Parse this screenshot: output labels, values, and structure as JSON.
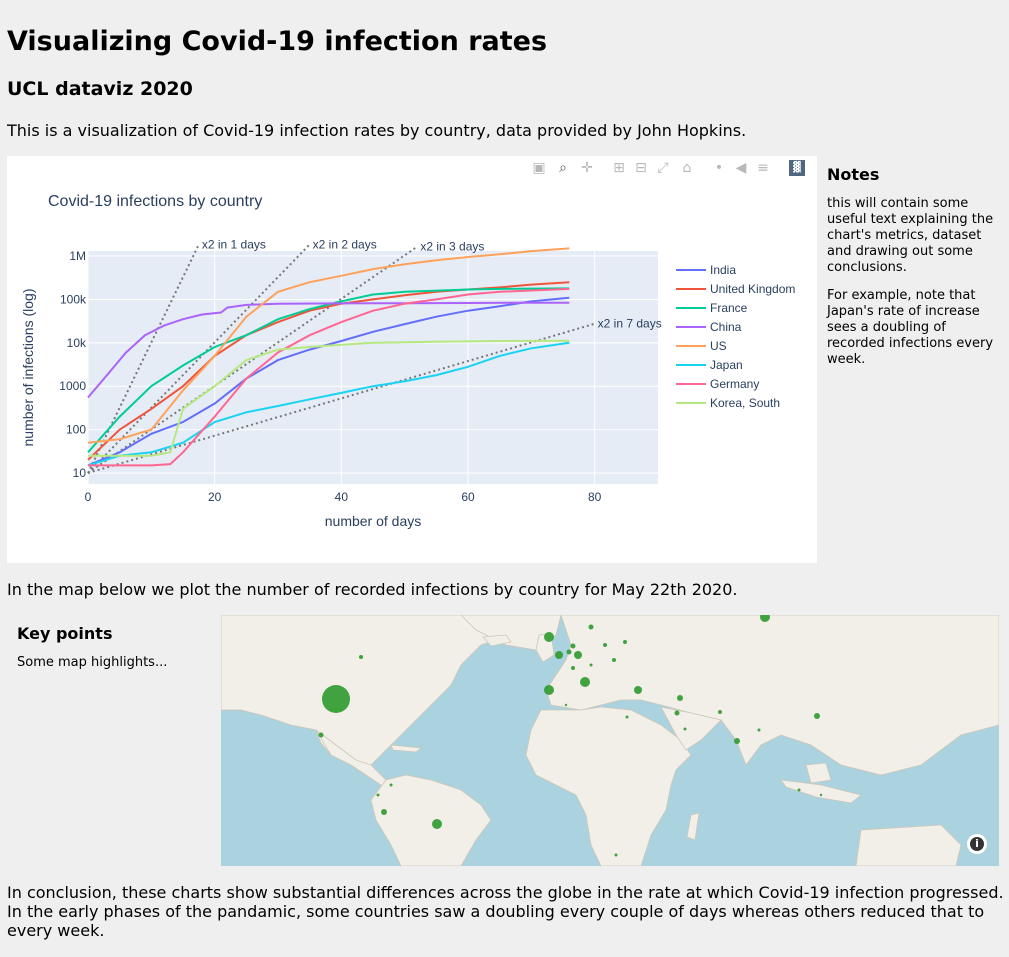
{
  "page": {
    "title": "Visualizing Covid-19 infection rates",
    "subtitle": "UCL dataviz 2020",
    "intro": "This is a visualization of Covid-19 infection rates by country, data provided by John Hopkins.",
    "map_intro": "In the map below we plot the number of recorded infections by country for May 22th 2020.",
    "conclusion": "In conclusion, these charts show substantial differences across the globe in the rate at which Covid-19 infection progressed. In the early phases of the pandamic, some countries saw a doubling every couple of days whereas others reduced that to every week."
  },
  "notes": {
    "heading": "Notes",
    "p1": "this will contain some useful text explaining the chart's metrics, dataset and drawing out some conclusions.",
    "p2": "For example, note that Japan's rate of increase sees a doubling of recorded infections every week."
  },
  "keypoints": {
    "heading": "Key points",
    "text": "Some map highlights..."
  },
  "modebar": {
    "icons": [
      "camera-icon",
      "zoom-icon",
      "pan-icon",
      "zoom-in-icon",
      "zoom-out-icon",
      "autoscale-icon",
      "reset-axes-icon",
      "spike-lines-icon",
      "hover-closest-icon",
      "hover-compare-icon",
      "plotly-logo-icon"
    ]
  },
  "chart_data": {
    "type": "line",
    "title": "Covid-19 infections by country",
    "xlabel": "number of days",
    "ylabel": "number of infections (log)",
    "xlim": [
      0,
      90
    ],
    "ylim": [
      10,
      2000000
    ],
    "y_scale": "log",
    "x_ticks": [
      0,
      20,
      40,
      60,
      80
    ],
    "y_ticks": [
      {
        "v": 10,
        "label": "10"
      },
      {
        "v": 100,
        "label": "100"
      },
      {
        "v": 1000,
        "label": "1000"
      },
      {
        "v": 10000,
        "label": "10k"
      },
      {
        "v": 100000,
        "label": "100k"
      },
      {
        "v": 1000000,
        "label": "1M"
      }
    ],
    "grid": true,
    "legend": "right",
    "series": [
      {
        "name": "India",
        "color": "#636efa",
        "x": [
          0,
          5,
          10,
          15,
          20,
          25,
          30,
          35,
          40,
          45,
          50,
          55,
          60,
          65,
          70,
          76
        ],
        "y": [
          15,
          30,
          80,
          150,
          400,
          1500,
          4000,
          7000,
          11000,
          18000,
          27000,
          40000,
          55000,
          70000,
          90000,
          110000
        ]
      },
      {
        "name": "United Kingdom",
        "color": "#ef553b",
        "x": [
          0,
          5,
          10,
          15,
          20,
          25,
          30,
          35,
          40,
          45,
          50,
          55,
          60,
          65,
          70,
          76
        ],
        "y": [
          20,
          100,
          300,
          1000,
          5000,
          15000,
          30000,
          55000,
          80000,
          100000,
          125000,
          150000,
          170000,
          190000,
          220000,
          250000
        ]
      },
      {
        "name": "France",
        "color": "#00cc96",
        "x": [
          0,
          5,
          10,
          15,
          20,
          25,
          30,
          35,
          40,
          45,
          50,
          55,
          60,
          65,
          70,
          76
        ],
        "y": [
          30,
          200,
          1000,
          3000,
          8000,
          15000,
          35000,
          60000,
          90000,
          130000,
          150000,
          160000,
          170000,
          175000,
          178000,
          180000
        ]
      },
      {
        "name": "China",
        "color": "#ab63fa",
        "x": [
          0,
          3,
          6,
          9,
          12,
          15,
          18,
          21,
          22,
          25,
          30,
          40,
          50,
          60,
          70,
          76
        ],
        "y": [
          550,
          1800,
          6000,
          15000,
          25000,
          35000,
          45000,
          50000,
          65000,
          75000,
          80000,
          81000,
          82000,
          83000,
          84000,
          84000
        ]
      },
      {
        "name": "US",
        "color": "#ffa15a",
        "x": [
          0,
          5,
          10,
          15,
          20,
          25,
          30,
          35,
          40,
          45,
          50,
          55,
          60,
          65,
          70,
          76
        ],
        "y": [
          50,
          60,
          100,
          800,
          5000,
          40000,
          150000,
          250000,
          350000,
          500000,
          650000,
          800000,
          950000,
          1100000,
          1300000,
          1500000
        ]
      },
      {
        "name": "Japan",
        "color": "#19d3f3",
        "x": [
          0,
          5,
          10,
          15,
          20,
          25,
          30,
          35,
          40,
          45,
          50,
          55,
          60,
          65,
          70,
          76
        ],
        "y": [
          15,
          25,
          30,
          50,
          150,
          250,
          350,
          500,
          700,
          1000,
          1300,
          1800,
          2800,
          5000,
          7500,
          10000
        ]
      },
      {
        "name": "Germany",
        "color": "#ff6692",
        "x": [
          0,
          5,
          10,
          13,
          15,
          20,
          25,
          30,
          35,
          40,
          45,
          50,
          55,
          60,
          65,
          76
        ],
        "y": [
          15,
          15,
          15,
          16,
          30,
          200,
          1500,
          6000,
          15000,
          30000,
          55000,
          80000,
          100000,
          130000,
          150000,
          175000
        ]
      },
      {
        "name": "Korea, South",
        "color": "#b6e880",
        "x": [
          0,
          5,
          10,
          13,
          15,
          20,
          25,
          30,
          35,
          40,
          45,
          50,
          55,
          60,
          65,
          76
        ],
        "y": [
          25,
          25,
          25,
          30,
          300,
          1000,
          4000,
          7000,
          8000,
          9000,
          10000,
          10300,
          10600,
          10800,
          11000,
          11200
        ]
      }
    ],
    "guides": [
      {
        "label": "x2 in 1 days",
        "days": 1
      },
      {
        "label": "x2 in 2 days",
        "days": 2
      },
      {
        "label": "x2 in 3 days",
        "days": 3
      },
      {
        "label": "x2 in 7 days",
        "days": 7
      }
    ]
  },
  "map": {
    "ocean_color": "#aad3df",
    "land_color": "#f2efe9",
    "marker_color": "#2e9a2e"
  }
}
